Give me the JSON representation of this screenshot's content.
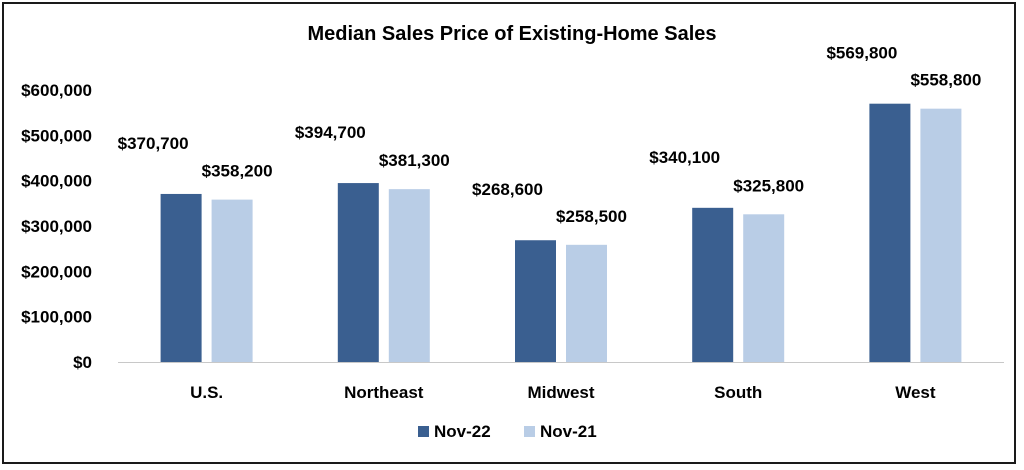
{
  "chart_data": {
    "type": "bar",
    "title": "Median Sales Price of Existing-Home Sales",
    "categories": [
      "U.S.",
      "Northeast",
      "Midwest",
      "South",
      "West"
    ],
    "series": [
      {
        "name": "Nov-22",
        "values": [
          370700,
          394700,
          268600,
          340100,
          569800
        ],
        "labels": [
          "$370,700",
          "$394,700",
          "$268,600",
          "$340,100",
          "$569,800"
        ]
      },
      {
        "name": "Nov-21",
        "values": [
          358200,
          381300,
          258500,
          325800,
          558800
        ],
        "labels": [
          "$358,200",
          "$381,300",
          "$258,500",
          "$325,800",
          "$558,800"
        ]
      }
    ],
    "ylim": [
      0,
      600000
    ],
    "yticks": [
      0,
      100000,
      200000,
      300000,
      400000,
      500000,
      600000
    ],
    "yticklabels": [
      "$0",
      "$100,000",
      "$200,000",
      "$300,000",
      "$400,000",
      "$500,000",
      "$600,000"
    ],
    "colors": [
      "#3a5f90",
      "#b9cde6"
    ],
    "grid": false,
    "legend": "bottom"
  }
}
